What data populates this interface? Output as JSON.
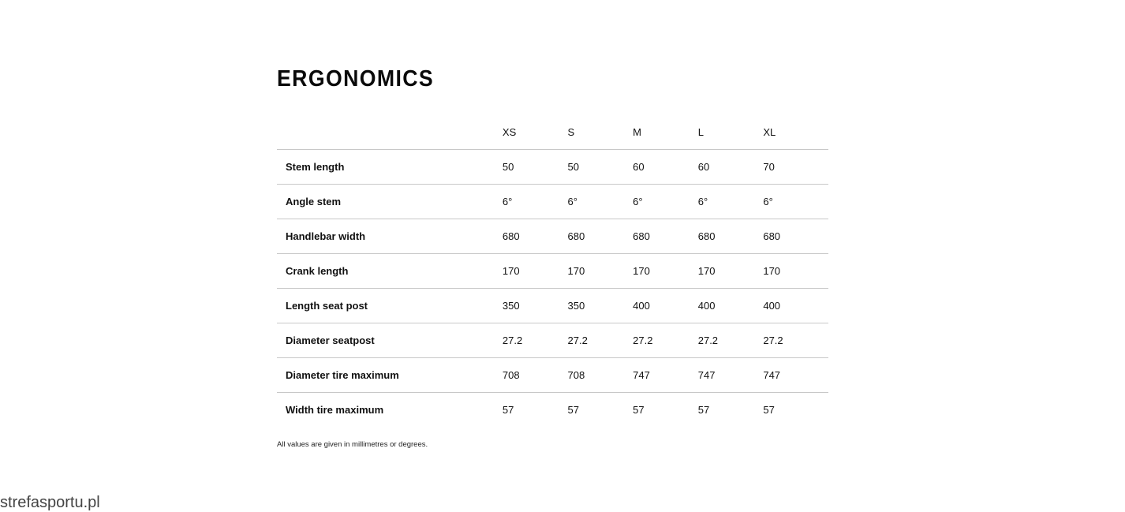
{
  "title": "ERGONOMICS",
  "sizes": [
    "XS",
    "S",
    "M",
    "L",
    "XL"
  ],
  "rows": [
    {
      "label": "Stem length",
      "values": [
        "50",
        "50",
        "60",
        "60",
        "70"
      ]
    },
    {
      "label": "Angle stem",
      "values": [
        "6°",
        "6°",
        "6°",
        "6°",
        "6°"
      ]
    },
    {
      "label": "Handlebar width",
      "values": [
        "680",
        "680",
        "680",
        "680",
        "680"
      ]
    },
    {
      "label": "Crank length",
      "values": [
        "170",
        "170",
        "170",
        "170",
        "170"
      ]
    },
    {
      "label": "Length seat post",
      "values": [
        "350",
        "350",
        "400",
        "400",
        "400"
      ]
    },
    {
      "label": "Diameter seatpost",
      "values": [
        "27.2",
        "27.2",
        "27.2",
        "27.2",
        "27.2"
      ]
    },
    {
      "label": "Diameter tire maximum",
      "values": [
        "708",
        "708",
        "747",
        "747",
        "747"
      ]
    },
    {
      "label": "Width tire maximum",
      "values": [
        "57",
        "57",
        "57",
        "57",
        "57"
      ]
    }
  ],
  "note": "All values are given in millimetres or degrees.",
  "watermark": "strefasportu.pl"
}
